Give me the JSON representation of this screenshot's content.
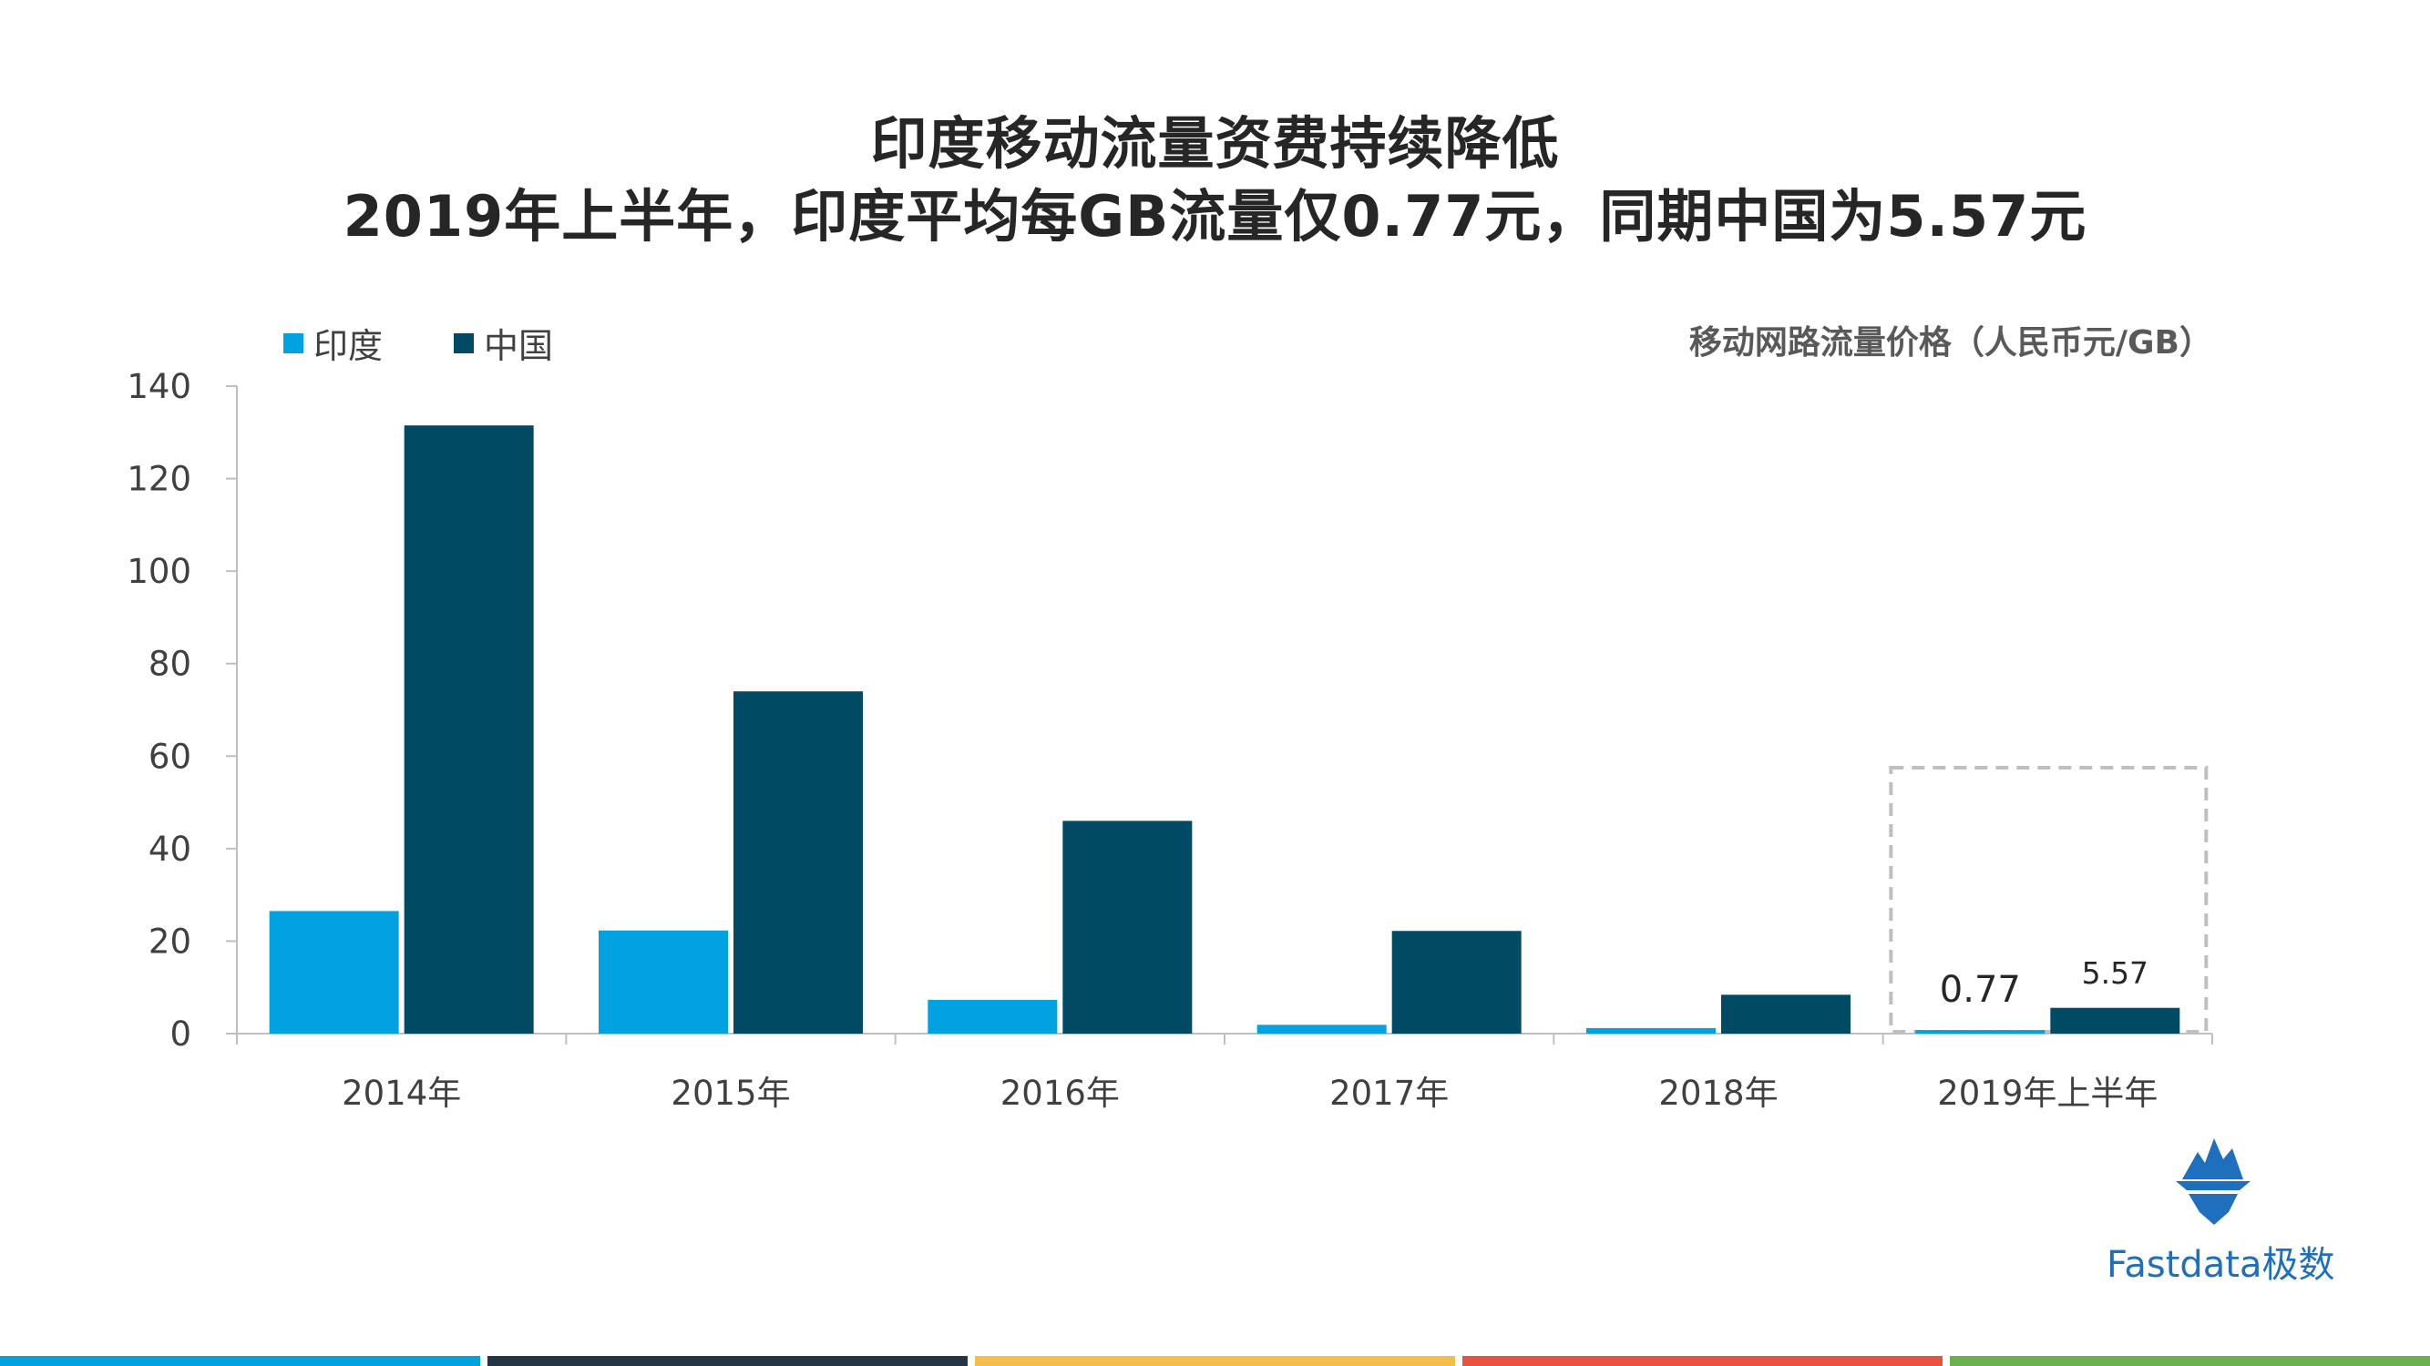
{
  "title": {
    "line1": "印度移动流量资费持续降低",
    "line2": "2019年上半年，印度平均每GB流量仅0.77元，同期中国为5.57元"
  },
  "unit_label": "移动网路流量价格（人民币元/GB）",
  "legend": [
    {
      "name": "印度",
      "color": "#00a3e0"
    },
    {
      "name": "中国",
      "color": "#004b63"
    }
  ],
  "chart_data": {
    "type": "bar",
    "categories": [
      "2014年",
      "2015年",
      "2016年",
      "2017年",
      "2018年",
      "2019年上半年"
    ],
    "series": [
      {
        "name": "印度",
        "color": "#00a3e0",
        "values": [
          26.5,
          22.3,
          7.3,
          1.9,
          1.2,
          0.77
        ]
      },
      {
        "name": "中国",
        "color": "#004b63",
        "values": [
          131.5,
          74.0,
          46.0,
          22.2,
          8.4,
          5.57
        ]
      }
    ],
    "ylim": [
      0,
      140
    ],
    "yticks": [
      0,
      20,
      40,
      60,
      80,
      100,
      120,
      140
    ],
    "ytick_labels": [
      "0",
      "20",
      "40",
      "60",
      "80",
      "100",
      "120",
      "140"
    ],
    "data_labels": [
      {
        "category": "2019年上半年",
        "series": "印度",
        "text": "0.77"
      },
      {
        "category": "2019年上半年",
        "series": "中国",
        "text": "5.57"
      }
    ],
    "highlight_category": "2019年上半年",
    "grid": false,
    "legend_position": "top-left"
  },
  "logo": {
    "text": "Fastdata极数",
    "icon": "iceberg-icon"
  },
  "footer_colors": [
    "#00a3e0",
    "#263545",
    "#f5bd4a",
    "#e8523f",
    "#6ab04c"
  ]
}
